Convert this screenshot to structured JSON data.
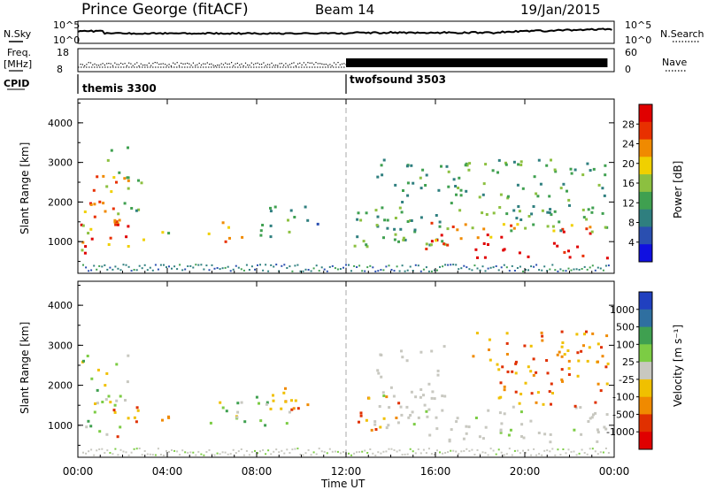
{
  "header": {
    "station": "Prince George (fitACF)",
    "beam": "Beam 14",
    "date": "19/Jan/2015"
  },
  "top_panels": {
    "nsky_label": "N.Sky",
    "nsky_ticks": [
      "10^5",
      "10^0"
    ],
    "nsearch_label": "N.Search",
    "nsearch_ticks": [
      "10^5",
      "10^0"
    ],
    "freq_label": "Freq.",
    "freq_unit": "[MHz]",
    "freq_ticks": [
      "18",
      "8"
    ],
    "nave_label": "Nave",
    "nave_ticks": [
      "60",
      "0"
    ],
    "cpid_label": "CPID",
    "cpid_segments": [
      {
        "name": "themis 3300",
        "start_hour": 0,
        "end_hour": 12
      },
      {
        "name": "twofsound 3503",
        "start_hour": 12,
        "end_hour": 24
      }
    ]
  },
  "chart_data": [
    {
      "type": "heatmap",
      "name": "power",
      "ylabel": "Slant Range [km]",
      "yticks": [
        "1000",
        "2000",
        "3000",
        "4000"
      ],
      "ylim": [
        200,
        4600
      ],
      "xlim": [
        0,
        24
      ],
      "colorbar_label": "Power [dB]",
      "colorbar_ticks": [
        "4",
        "8",
        "12",
        "16",
        "20",
        "24",
        "28"
      ],
      "colorscale": [
        "#1010e0",
        "#2a4fb0",
        "#2f7f7f",
        "#3fa050",
        "#8cc040",
        "#f0d000",
        "#f08a00",
        "#e83000",
        "#e00000"
      ],
      "echo_regions": [
        {
          "t0": 0.1,
          "t1": 2.3,
          "r0": 700,
          "r1": 2800,
          "peak": 0.8
        },
        {
          "t0": 1.1,
          "t1": 2.8,
          "r0": 1800,
          "r1": 3500,
          "peak": 0.45
        },
        {
          "t0": 2.8,
          "t1": 3.0,
          "r0": 800,
          "r1": 1200,
          "peak": 0.7
        },
        {
          "t0": 3.5,
          "t1": 4.4,
          "r0": 1000,
          "r1": 1300,
          "peak": 0.6
        },
        {
          "t0": 5.8,
          "t1": 7.3,
          "r0": 1000,
          "r1": 1700,
          "peak": 0.75
        },
        {
          "t0": 7.5,
          "t1": 9.8,
          "r0": 1100,
          "r1": 1700,
          "peak": 0.5
        },
        {
          "t0": 8.5,
          "t1": 11.0,
          "r0": 1400,
          "r1": 2000,
          "peak": 0.35
        },
        {
          "t0": 12.2,
          "t1": 14.6,
          "r0": 900,
          "r1": 1800,
          "peak": 0.45
        },
        {
          "t0": 13.2,
          "t1": 16.5,
          "r0": 900,
          "r1": 3100,
          "peak": 0.4
        },
        {
          "t0": 15.5,
          "t1": 23.7,
          "r0": 600,
          "r1": 1500,
          "peak": 0.85
        },
        {
          "t0": 16.5,
          "t1": 23.7,
          "r0": 1300,
          "r1": 3100,
          "peak": 0.45
        }
      ]
    },
    {
      "type": "heatmap",
      "name": "velocity",
      "ylabel": "Slant Range [km]",
      "yticks": [
        "1000",
        "2000",
        "3000",
        "4000"
      ],
      "ylim": [
        200,
        4600
      ],
      "xlim": [
        0,
        24
      ],
      "xlabel": "Time UT",
      "xticks": [
        "00:00",
        "04:00",
        "08:00",
        "12:00",
        "16:00",
        "20:00",
        "00:00"
      ],
      "xtick_hours": [
        0,
        4,
        8,
        12,
        16,
        20,
        24
      ],
      "colorbar_label": "Velocity [m s⁻¹]",
      "colorbar_ticks": [
        "1000",
        "500",
        "100",
        "25",
        "-25",
        "-100",
        "-500",
        "-1000"
      ],
      "colorscale": [
        "#2040c0",
        "#2f6fa0",
        "#3fa050",
        "#7ccc44",
        "#c8c8c0",
        "#f0c000",
        "#f08a00",
        "#e03000",
        "#e00000"
      ],
      "echo_regions": [
        {
          "t0": 0.1,
          "t1": 2.3,
          "r0": 700,
          "r1": 2800,
          "kind": "mixed"
        },
        {
          "t0": 1.5,
          "t1": 2.7,
          "r0": 700,
          "r1": 1500,
          "kind": "away"
        },
        {
          "t0": 3.5,
          "t1": 4.4,
          "r0": 1000,
          "r1": 1300,
          "kind": "away"
        },
        {
          "t0": 5.8,
          "t1": 9.8,
          "r0": 1000,
          "r1": 1800,
          "kind": "mixed"
        },
        {
          "t0": 9.0,
          "t1": 11.0,
          "r0": 1400,
          "r1": 2000,
          "kind": "away"
        },
        {
          "t0": 12.5,
          "t1": 14.6,
          "r0": 900,
          "r1": 1800,
          "kind": "away"
        },
        {
          "t0": 13.2,
          "t1": 16.5,
          "r0": 900,
          "r1": 3100,
          "kind": "gray"
        },
        {
          "t0": 15.5,
          "t1": 23.7,
          "r0": 600,
          "r1": 1500,
          "kind": "gray"
        },
        {
          "t0": 17.5,
          "t1": 23.7,
          "r0": 1500,
          "r1": 3400,
          "kind": "away"
        }
      ]
    }
  ]
}
